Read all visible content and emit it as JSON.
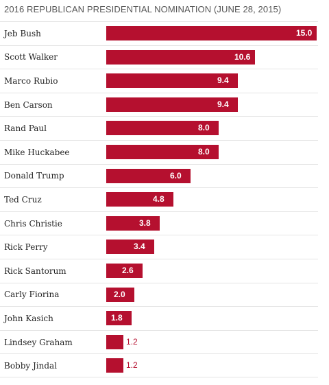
{
  "chart_data": {
    "type": "bar",
    "orientation": "horizontal",
    "title": "2016 REPUBLICAN PRESIDENTIAL NOMINATION (JUNE 28, 2015)",
    "categories": [
      "Jeb Bush",
      "Scott Walker",
      "Marco Rubio",
      "Ben Carson",
      "Rand Paul",
      "Mike Huckabee",
      "Donald Trump",
      "Ted Cruz",
      "Chris Christie",
      "Rick Perry",
      "Rick Santorum",
      "Carly Fiorina",
      "John Kasich",
      "Lindsey Graham",
      "Bobby Jindal"
    ],
    "values": [
      15.0,
      10.6,
      9.4,
      9.4,
      8.0,
      8.0,
      6.0,
      4.8,
      3.8,
      3.4,
      2.6,
      2.0,
      1.8,
      1.2,
      1.2
    ],
    "value_labels": [
      "15.0",
      "10.6",
      "9.4",
      "9.4",
      "8.0",
      "8.0",
      "6.0",
      "4.8",
      "3.8",
      "3.4",
      "2.6",
      "2.0",
      "1.8",
      "1.2",
      "1.2"
    ],
    "xlim": [
      0,
      15
    ],
    "grid": false,
    "legend": "none",
    "bar_color": "#b5102f",
    "divider_color": "#e4e4e4"
  }
}
